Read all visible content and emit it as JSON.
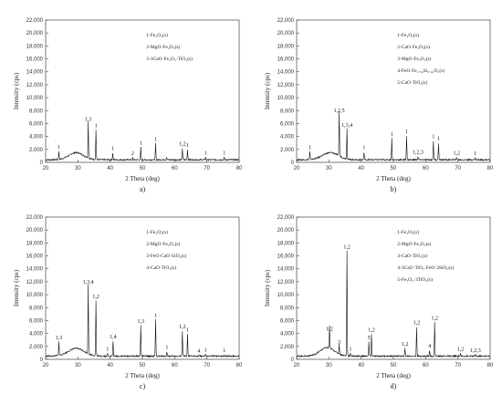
{
  "chart_data": [
    {
      "type": "line",
      "panel_label": "a)",
      "xlabel": "2 Theta (deg)",
      "ylabel": "Intensity (cps)",
      "xlim": [
        20,
        80
      ],
      "ylim": [
        0,
        22000
      ],
      "xticks": [
        20,
        30,
        40,
        50,
        60,
        70,
        80
      ],
      "yticks": [
        0,
        2000,
        4000,
        6000,
        8000,
        10000,
        12000,
        14000,
        16000,
        18000,
        20000,
        22000
      ],
      "legend": [
        "1-Fe₂O₃(s)",
        "2-MgO·Fe₂O₃(s)",
        "3-3CaO·Fe₂O₃·TiO₂(s)"
      ],
      "baseline": 400,
      "hump": {
        "center": 29.5,
        "height": 1100,
        "width": 3.2
      },
      "peaks": [
        {
          "x": 24.1,
          "y": 1700,
          "label": "1"
        },
        {
          "x": 33.2,
          "y": 6000,
          "label": "1,3"
        },
        {
          "x": 35.6,
          "y": 5000,
          "label": "1"
        },
        {
          "x": 40.8,
          "y": 1500,
          "label": "1"
        },
        {
          "x": 49.5,
          "y": 2300,
          "label": "1"
        },
        {
          "x": 47.0,
          "y": 700,
          "label": "2"
        },
        {
          "x": 54.1,
          "y": 2900,
          "label": "1"
        },
        {
          "x": 57.5,
          "y": 800,
          "label": ""
        },
        {
          "x": 62.4,
          "y": 2200,
          "label": "1,2"
        },
        {
          "x": 64.0,
          "y": 2000,
          "label": "1"
        },
        {
          "x": 69.6,
          "y": 800,
          "label": "1"
        },
        {
          "x": 75.4,
          "y": 800,
          "label": "1"
        }
      ]
    },
    {
      "type": "line",
      "panel_label": "b)",
      "xlabel": "2 Theta (deg)",
      "ylabel": "Intensity (cps)",
      "xlim": [
        20,
        80
      ],
      "ylim": [
        0,
        22000
      ],
      "xticks": [
        20,
        30,
        40,
        50,
        60,
        70,
        80
      ],
      "yticks": [
        0,
        2000,
        4000,
        6000,
        8000,
        10000,
        12000,
        14000,
        16000,
        18000,
        20000,
        22000
      ],
      "legend": [
        "1-Fe₂O₃(s)",
        "2-CaO·Fe₂O₃(s)",
        "3-MgO·Fe₂O₃(s)",
        "4-FeO·Fe₁.₅₆Si₀.₄₄O₂(s)",
        "5-CaO·TiO₂(s)"
      ],
      "baseline": 400,
      "hump": {
        "center": 30.5,
        "height": 1100,
        "width": 3.5
      },
      "peaks": [
        {
          "x": 24.1,
          "y": 1600,
          "label": "1"
        },
        {
          "x": 33.2,
          "y": 7300,
          "label": "1,2,5"
        },
        {
          "x": 35.6,
          "y": 5100,
          "label": "1,3,4"
        },
        {
          "x": 40.9,
          "y": 1600,
          "label": "1"
        },
        {
          "x": 49.5,
          "y": 3700,
          "label": "1"
        },
        {
          "x": 54.1,
          "y": 4100,
          "label": "1"
        },
        {
          "x": 57.6,
          "y": 900,
          "label": "1,2,3"
        },
        {
          "x": 62.4,
          "y": 3300,
          "label": "1"
        },
        {
          "x": 64.0,
          "y": 3000,
          "label": "1"
        },
        {
          "x": 69.6,
          "y": 800,
          "label": "1,2"
        },
        {
          "x": 75.4,
          "y": 700,
          "label": "1"
        }
      ]
    },
    {
      "type": "line",
      "panel_label": "c)",
      "xlabel": "2 Theta (deg)",
      "ylabel": "Intensity (cps)",
      "xlim": [
        20,
        80
      ],
      "ylim": [
        0,
        22000
      ],
      "xticks": [
        20,
        30,
        40,
        50,
        60,
        70,
        80
      ],
      "yticks": [
        0,
        2000,
        4000,
        6000,
        8000,
        10000,
        12000,
        14000,
        16000,
        18000,
        20000,
        22000
      ],
      "legend": [
        "1-Fe₂O₃(s)",
        "2-MgO·Fe₂O₃(s)",
        "3-FeO·CaO·SiO₂(s)",
        "4-CaO·TiO₂(s)"
      ],
      "baseline": 500,
      "hump": {
        "center": 29.5,
        "height": 1200,
        "width": 3.5
      },
      "peaks": [
        {
          "x": 24.1,
          "y": 2700,
          "label": "1,3"
        },
        {
          "x": 33.2,
          "y": 11300,
          "label": "1,3,4"
        },
        {
          "x": 35.6,
          "y": 9000,
          "label": "1,2"
        },
        {
          "x": 39.2,
          "y": 900,
          "label": "1"
        },
        {
          "x": 40.9,
          "y": 2800,
          "label": "1,4"
        },
        {
          "x": 49.5,
          "y": 5200,
          "label": "1,3"
        },
        {
          "x": 54.1,
          "y": 6100,
          "label": "1"
        },
        {
          "x": 57.6,
          "y": 1200,
          "label": "1"
        },
        {
          "x": 62.4,
          "y": 4400,
          "label": "1,2"
        },
        {
          "x": 64.0,
          "y": 3900,
          "label": "1"
        },
        {
          "x": 67.5,
          "y": 600,
          "label": "4"
        },
        {
          "x": 69.6,
          "y": 800,
          "label": "1"
        },
        {
          "x": 75.4,
          "y": 700,
          "label": "1"
        }
      ]
    },
    {
      "type": "line",
      "panel_label": "d)",
      "xlabel": "2 Theta (deg)",
      "ylabel": "Intensity (cps)",
      "xlim": [
        20,
        80
      ],
      "ylim": [
        0,
        22000
      ],
      "xticks": [
        20,
        30,
        40,
        50,
        60,
        70,
        80
      ],
      "yticks": [
        0,
        2000,
        4000,
        6000,
        8000,
        10000,
        12000,
        14000,
        16000,
        18000,
        20000,
        22000
      ],
      "legend": [
        "1-Fe₂O₃(s)",
        "2-MgO·Fe₂O₃(s)",
        "3-CaO·TiO₂(s)",
        "4-3CaO·TiO₂·FeO·3SiO₂(s)",
        "5-Fe₂O₃·3TiO₂(s)"
      ],
      "baseline": 500,
      "hump": {
        "center": 29.5,
        "height": 1300,
        "width": 3.2
      },
      "peaks": [
        {
          "x": 30.2,
          "y": 4000,
          "label": "1,2"
        },
        {
          "x": 33.2,
          "y": 2000,
          "label": "3"
        },
        {
          "x": 35.6,
          "y": 16700,
          "label": "1,2"
        },
        {
          "x": 36.7,
          "y": 900,
          "label": "1"
        },
        {
          "x": 43.2,
          "y": 3900,
          "label": "1,2"
        },
        {
          "x": 42.4,
          "y": 2700,
          "label": "5"
        },
        {
          "x": 53.6,
          "y": 1700,
          "label": "1,2"
        },
        {
          "x": 57.2,
          "y": 5000,
          "label": "1,2"
        },
        {
          "x": 61.2,
          "y": 1400,
          "label": "4"
        },
        {
          "x": 62.8,
          "y": 5700,
          "label": "1,2"
        },
        {
          "x": 70.8,
          "y": 900,
          "label": "1,2"
        },
        {
          "x": 75.4,
          "y": 700,
          "label": "1,2,3"
        }
      ]
    }
  ]
}
